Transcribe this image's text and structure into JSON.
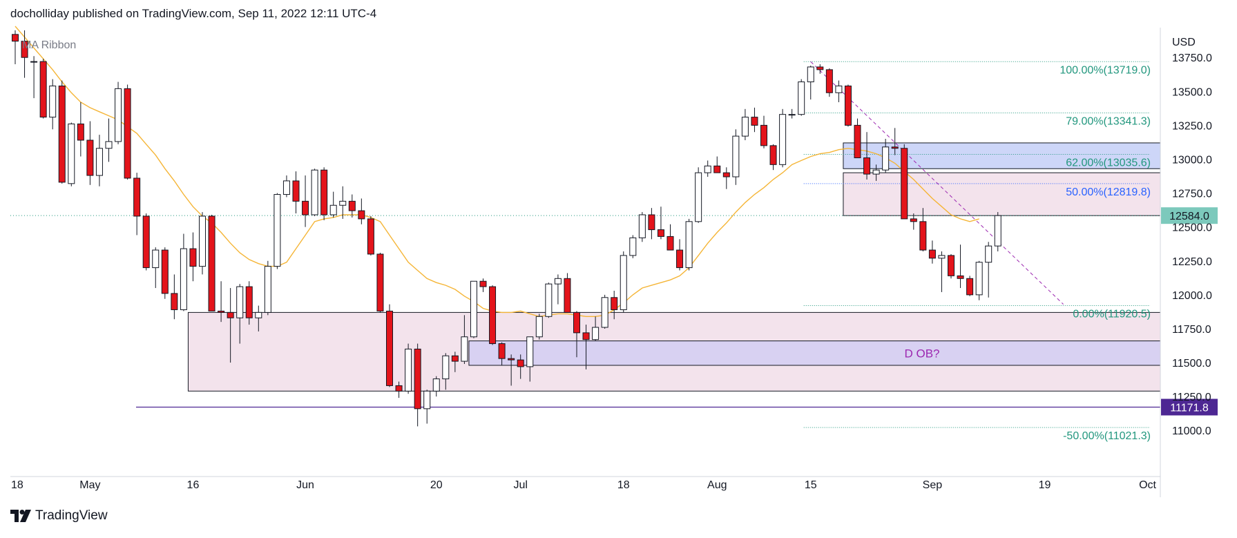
{
  "header": {
    "attribution": "docholliday published on TradingView.com, Sep 11, 2022 12:11 UTC-4"
  },
  "indicator_label": "MA Ribbon",
  "footer": {
    "brand": "TradingView"
  },
  "colors": {
    "up_fill": "#ffffff",
    "down_fill": "#e3141b",
    "wick": "#131722",
    "ma": "#f5b536",
    "fib": "#22977e",
    "fib_50": "#2962ff",
    "ob_pink": "#f3e3ec",
    "ob_blue": "#cdd6f8",
    "ob_violet": "#d8d1f2",
    "support": "#4d2793",
    "price_tag": "#7cc9bc",
    "ob_text": "#9c27b0",
    "trendline": "#9c27b0"
  },
  "chart_data": {
    "type": "candlestick",
    "currency": "USD",
    "ylim": [
      10660,
      13970
    ],
    "y_ticks": [
      11000,
      11250,
      11500,
      11750,
      12000,
      12250,
      12500,
      12750,
      13000,
      13250,
      13500,
      13750
    ],
    "y_tick_labels": [
      "11000.0",
      "11250.0",
      "11500.0",
      "11750.0",
      "12000.0",
      "12250.0",
      "12500.0",
      "12750.0",
      "13000.0",
      "13250.0",
      "13500.0",
      "13750.0"
    ],
    "x_labels": [
      {
        "label": "18",
        "bar": -2
      },
      {
        "label": "May",
        "bar": 8
      },
      {
        "label": "16",
        "bar": 19
      },
      {
        "label": "Jun",
        "bar": 31
      },
      {
        "label": "20",
        "bar": 45
      },
      {
        "label": "Jul",
        "bar": 54
      },
      {
        "label": "18",
        "bar": 65
      },
      {
        "label": "Aug",
        "bar": 75
      },
      {
        "label": "15",
        "bar": 85
      },
      {
        "label": "Sep",
        "bar": 98
      },
      {
        "label": "19",
        "bar": 110
      },
      {
        "label": "Oct",
        "bar": 121
      }
    ],
    "candles": [
      [
        13920,
        13950,
        13700,
        13870
      ],
      [
        13870,
        13950,
        13600,
        13750
      ],
      [
        13720,
        13760,
        13450,
        13720
      ],
      [
        13720,
        13740,
        13300,
        13310
      ],
      [
        13310,
        13590,
        13220,
        13540
      ],
      [
        13540,
        13580,
        12820,
        12830
      ],
      [
        12820,
        13270,
        12800,
        13260
      ],
      [
        13260,
        13420,
        13020,
        13140
      ],
      [
        13140,
        13280,
        12810,
        12880
      ],
      [
        12880,
        13180,
        12800,
        13080
      ],
      [
        13080,
        13300,
        12980,
        13130
      ],
      [
        13130,
        13570,
        13110,
        13520
      ],
      [
        13520,
        13550,
        12850,
        12860
      ],
      [
        12860,
        12900,
        12440,
        12580
      ],
      [
        12580,
        12600,
        12180,
        12200
      ],
      [
        12200,
        12350,
        12050,
        12330
      ],
      [
        12330,
        12350,
        11970,
        12010
      ],
      [
        12010,
        12150,
        11820,
        11890
      ],
      [
        11890,
        12450,
        11880,
        12340
      ],
      [
        12340,
        12460,
        12100,
        12210
      ],
      [
        12210,
        12610,
        12150,
        12580
      ],
      [
        12580,
        12590,
        11880,
        11880
      ],
      [
        11880,
        12100,
        11800,
        11870
      ],
      [
        11870,
        12050,
        11500,
        11830
      ],
      [
        11830,
        12080,
        11640,
        12060
      ],
      [
        12060,
        12100,
        11780,
        11830
      ],
      [
        11830,
        11920,
        11730,
        11870
      ],
      [
        11870,
        12250,
        11850,
        12210
      ],
      [
        12210,
        12750,
        12190,
        12740
      ],
      [
        12740,
        12880,
        12720,
        12840
      ],
      [
        12840,
        12910,
        12600,
        12690
      ],
      [
        12690,
        12880,
        12500,
        12590
      ],
      [
        12590,
        12930,
        12580,
        12920
      ],
      [
        12920,
        12940,
        12550,
        12590
      ],
      [
        12590,
        12760,
        12570,
        12660
      ],
      [
        12660,
        12800,
        12560,
        12690
      ],
      [
        12690,
        12740,
        12570,
        12620
      ],
      [
        12620,
        12710,
        12520,
        12560
      ],
      [
        12560,
        12580,
        12290,
        12300
      ],
      [
        12300,
        12310,
        11870,
        11880
      ],
      [
        11880,
        11930,
        11320,
        11330
      ],
      [
        11330,
        11360,
        11240,
        11290
      ],
      [
        11290,
        11640,
        11270,
        11600
      ],
      [
        11600,
        11640,
        11030,
        11160
      ],
      [
        11160,
        11300,
        11050,
        11290
      ],
      [
        11290,
        11400,
        11250,
        11380
      ],
      [
        11380,
        11570,
        11300,
        11550
      ],
      [
        11550,
        11580,
        11430,
        11510
      ],
      [
        11510,
        11850,
        11490,
        11690
      ],
      [
        11690,
        12100,
        11680,
        12100
      ],
      [
        12100,
        12120,
        12020,
        12060
      ],
      [
        12060,
        12070,
        11630,
        11640
      ],
      [
        11640,
        11650,
        11480,
        11530
      ],
      [
        11530,
        11560,
        11330,
        11520
      ],
      [
        11520,
        11560,
        11380,
        11470
      ],
      [
        11470,
        11690,
        11360,
        11690
      ],
      [
        11690,
        11860,
        11670,
        11840
      ],
      [
        11840,
        12090,
        11830,
        12080
      ],
      [
        12080,
        12150,
        11930,
        12120
      ],
      [
        12120,
        12160,
        11890,
        11870
      ],
      [
        11870,
        11880,
        11540,
        11720
      ],
      [
        11720,
        11780,
        11450,
        11670
      ],
      [
        11670,
        11840,
        11660,
        11760
      ],
      [
        11760,
        12000,
        11750,
        11980
      ],
      [
        11980,
        12030,
        11820,
        11890
      ],
      [
        11890,
        12320,
        11870,
        12290
      ],
      [
        12290,
        12440,
        12270,
        12420
      ],
      [
        12420,
        12610,
        12390,
        12590
      ],
      [
        12590,
        12640,
        12410,
        12480
      ],
      [
        12480,
        12650,
        12410,
        12430
      ],
      [
        12430,
        12520,
        12330,
        12330
      ],
      [
        12330,
        12410,
        12180,
        12200
      ],
      [
        12200,
        12560,
        12180,
        12540
      ],
      [
        12540,
        12940,
        12530,
        12900
      ],
      [
        12900,
        12990,
        12870,
        12950
      ],
      [
        12950,
        13020,
        12900,
        12900
      ],
      [
        12900,
        12940,
        12780,
        12870
      ],
      [
        12870,
        13220,
        12810,
        13170
      ],
      [
        13170,
        13370,
        13140,
        13310
      ],
      [
        13310,
        13380,
        13200,
        13250
      ],
      [
        13250,
        13320,
        13080,
        13100
      ],
      [
        13100,
        13110,
        12920,
        12960
      ],
      [
        12960,
        13370,
        12940,
        13330
      ],
      [
        13330,
        13370,
        13300,
        13330
      ],
      [
        13330,
        13590,
        13320,
        13570
      ],
      [
        13570,
        13690,
        13440,
        13680
      ],
      [
        13680,
        13700,
        13630,
        13660
      ],
      [
        13660,
        13670,
        13460,
        13490
      ],
      [
        13490,
        13580,
        13420,
        13540
      ],
      [
        13540,
        13550,
        13240,
        13250
      ],
      [
        13250,
        13300,
        13010,
        13010
      ],
      [
        13010,
        13200,
        12850,
        12890
      ],
      [
        12890,
        12960,
        12840,
        12920
      ],
      [
        12920,
        13150,
        12900,
        13090
      ],
      [
        13090,
        13230,
        13030,
        13080
      ],
      [
        13080,
        13110,
        12570,
        12560
      ],
      [
        12560,
        12600,
        12480,
        12540
      ],
      [
        12540,
        12640,
        12320,
        12330
      ],
      [
        12330,
        12400,
        12230,
        12270
      ],
      [
        12270,
        12320,
        12020,
        12290
      ],
      [
        12290,
        12300,
        12120,
        12140
      ],
      [
        12140,
        12370,
        12050,
        12120
      ],
      [
        12120,
        12140,
        11990,
        12000
      ],
      [
        12000,
        12250,
        11960,
        12240
      ],
      [
        12240,
        12390,
        11980,
        12360
      ],
      [
        12360,
        12610,
        12320,
        12584
      ]
    ],
    "ma_ribbon": [
      13980,
      13900,
      13820,
      13740,
      13660,
      13570,
      13490,
      13420,
      13380,
      13350,
      13320,
      13290,
      13240,
      13190,
      13110,
      13030,
      12930,
      12840,
      12740,
      12650,
      12580,
      12530,
      12460,
      12380,
      12310,
      12260,
      12230,
      12210,
      12210,
      12240,
      12340,
      12440,
      12540,
      12560,
      12570,
      12590,
      12590,
      12590,
      12570,
      12540,
      12440,
      12340,
      12240,
      12180,
      12120,
      12090,
      12070,
      12040,
      11990,
      11950,
      11900,
      11880,
      11870,
      11870,
      11880,
      11860,
      11840,
      11850,
      11860,
      11860,
      11850,
      11840,
      11840,
      11850,
      11890,
      11940,
      12000,
      12050,
      12070,
      12090,
      12110,
      12140,
      12200,
      12290,
      12380,
      12460,
      12530,
      12610,
      12680,
      12740,
      12790,
      12850,
      12900,
      12960,
      12990,
      13020,
      13040,
      13050,
      13070,
      13080,
      13070,
      13060,
      13040,
      13010,
      12970,
      12910,
      12850,
      12780,
      12710,
      12650,
      12590,
      12560,
      12540,
      12560
    ],
    "fib_levels": [
      {
        "label": "100.00%(13719.0)",
        "value": 13719.0
      },
      {
        "label": "79.00%(13341.3)",
        "value": 13341.3
      },
      {
        "label": "62.00%(13035.6)",
        "value": 13035.6
      },
      {
        "label": "50.00%(12819.8)",
        "value": 12819.8
      },
      {
        "label": "0.00%(11920.5)",
        "value": 11920.5
      },
      {
        "label": "-50.00%(11021.3)",
        "value": 11021.3
      }
    ],
    "zones": [
      {
        "name": "",
        "type": "pink",
        "top": 11870,
        "bottom": 11290,
        "x_from": 19
      },
      {
        "name": "D OB?",
        "type": "violet",
        "top": 11660,
        "bottom": 11480,
        "x_from": 49
      },
      {
        "name": "",
        "type": "pink",
        "top": 12900,
        "bottom": 12584,
        "x_from": 89
      },
      {
        "name": "",
        "type": "blue",
        "top": 13120,
        "bottom": 12930,
        "x_from": 89
      }
    ],
    "support_line": {
      "value": 11171.8,
      "label": "11171.8"
    },
    "last_price": {
      "value": 12584.0,
      "label": "12584.0"
    },
    "trendline": {
      "from": [
        85,
        13719
      ],
      "to": [
        112,
        11930
      ]
    }
  }
}
